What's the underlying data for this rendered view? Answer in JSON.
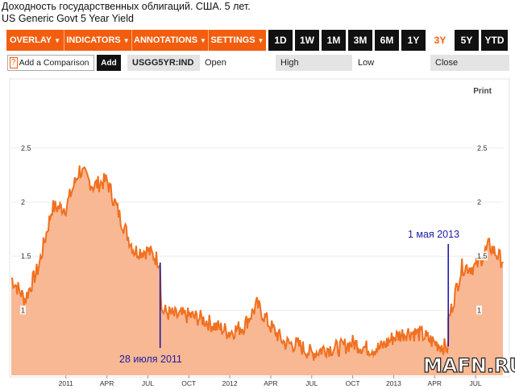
{
  "titles": {
    "line1": "Доходность государственных облигаций. США. 5 лет.",
    "line2": "US Generic Govt 5 Year Yield"
  },
  "toolbar": {
    "menus": [
      {
        "label": "OVERLAY"
      },
      {
        "label": "INDICATORS"
      },
      {
        "label": "ANNOTATIONS"
      },
      {
        "label": "SETTINGS"
      }
    ],
    "ranges": [
      "1D",
      "1W",
      "1M",
      "3M",
      "6M",
      "1Y",
      "3Y",
      "5Y",
      "YTD"
    ],
    "active_range": "3Y"
  },
  "comparison": {
    "help": "?",
    "placeholder": "Add a Comparison",
    "add_label": "Add"
  },
  "quote": {
    "ticker": "USGG5YR:IND",
    "open_label": "Open",
    "high_label": "High",
    "low_label": "Low",
    "close_label": "Close"
  },
  "print_label": "Print",
  "watermark": "MAFN.RU",
  "colors": {
    "accent": "#f25e0e",
    "area_fill": "#f9b894",
    "line": "#f07020",
    "annotation": "#1c1ca6"
  },
  "chart_data": {
    "type": "area",
    "title": "US Generic Govt 5 Year Yield",
    "y_ticks": [
      1,
      1.5,
      2,
      2.5
    ],
    "ylim": [
      0.4,
      2.9
    ],
    "x_ticks": [
      "2011",
      "APR",
      "JUL",
      "OCT",
      "2012",
      "APR",
      "JUL",
      "OCT",
      "2013",
      "APR",
      "JUL"
    ],
    "x_start": "2010-09",
    "x_end": "2013-09",
    "series": [
      {
        "points": [
          [
            "2010-09",
            1.3
          ],
          [
            "2010-10",
            1.1
          ],
          [
            "2010-11",
            1.4
          ],
          [
            "2010-12",
            1.95
          ],
          [
            "2011-01",
            1.95
          ],
          [
            "2011-02",
            2.3
          ],
          [
            "2011-03",
            2.15
          ],
          [
            "2011-04",
            2.2
          ],
          [
            "2011-05",
            1.85
          ],
          [
            "2011-06",
            1.55
          ],
          [
            "2011-07",
            1.55
          ],
          [
            "2011-07-28",
            1.45
          ],
          [
            "2011-08",
            1.0
          ],
          [
            "2011-09",
            0.95
          ],
          [
            "2011-10",
            0.95
          ],
          [
            "2011-11",
            0.92
          ],
          [
            "2011-12",
            0.85
          ],
          [
            "2012-01",
            0.8
          ],
          [
            "2012-02",
            0.85
          ],
          [
            "2012-03",
            1.05
          ],
          [
            "2012-04",
            0.85
          ],
          [
            "2012-05",
            0.7
          ],
          [
            "2012-06",
            0.68
          ],
          [
            "2012-07",
            0.6
          ],
          [
            "2012-08",
            0.65
          ],
          [
            "2012-09",
            0.65
          ],
          [
            "2012-10",
            0.7
          ],
          [
            "2012-11",
            0.65
          ],
          [
            "2012-12",
            0.65
          ],
          [
            "2013-01",
            0.75
          ],
          [
            "2013-02",
            0.8
          ],
          [
            "2013-03",
            0.78
          ],
          [
            "2013-04",
            0.7
          ],
          [
            "2013-05-01",
            0.65
          ],
          [
            "2013-05",
            0.9
          ],
          [
            "2013-06",
            1.4
          ],
          [
            "2013-07",
            1.4
          ],
          [
            "2013-08",
            1.6
          ],
          [
            "2013-09",
            1.45
          ]
        ]
      }
    ],
    "annotations": [
      {
        "label": "28 июля 2011",
        "date": "2011-07-28"
      },
      {
        "label": "1 мая 2013",
        "date": "2013-05-01"
      }
    ]
  }
}
